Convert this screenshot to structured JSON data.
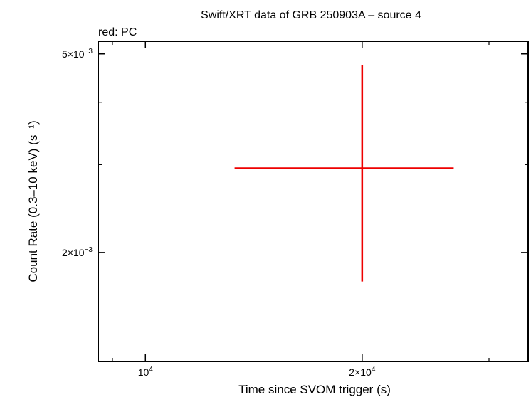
{
  "chart_data": {
    "type": "scatter",
    "title": "Swift/XRT data of GRB 250903A – source 4",
    "subtitle": "red: PC",
    "xlabel": "Time since SVOM trigger (s)",
    "ylabel": "Count Rate (0.3–10 keV) (s⁻¹)",
    "x_scale": "log",
    "y_scale": "log",
    "xlim": [
      8600,
      34000
    ],
    "ylim": [
      0.00121,
      0.0053
    ],
    "x_ticks": [
      {
        "value": 10000,
        "mantissa": "",
        "exponent": "4"
      },
      {
        "value": 20000,
        "mantissa": "2",
        "exponent": "4"
      }
    ],
    "y_ticks": [
      {
        "value": 0.002,
        "mantissa": "2",
        "exponent": "−3"
      },
      {
        "value": 0.005,
        "mantissa": "5",
        "exponent": "−3"
      }
    ],
    "series": [
      {
        "name": "PC",
        "color": "#ee0000",
        "points": [
          {
            "x": 20000,
            "x_lo": 13300,
            "x_hi": 26800,
            "y": 0.00295,
            "y_lo": 0.00175,
            "y_hi": 0.00475
          }
        ]
      }
    ]
  }
}
